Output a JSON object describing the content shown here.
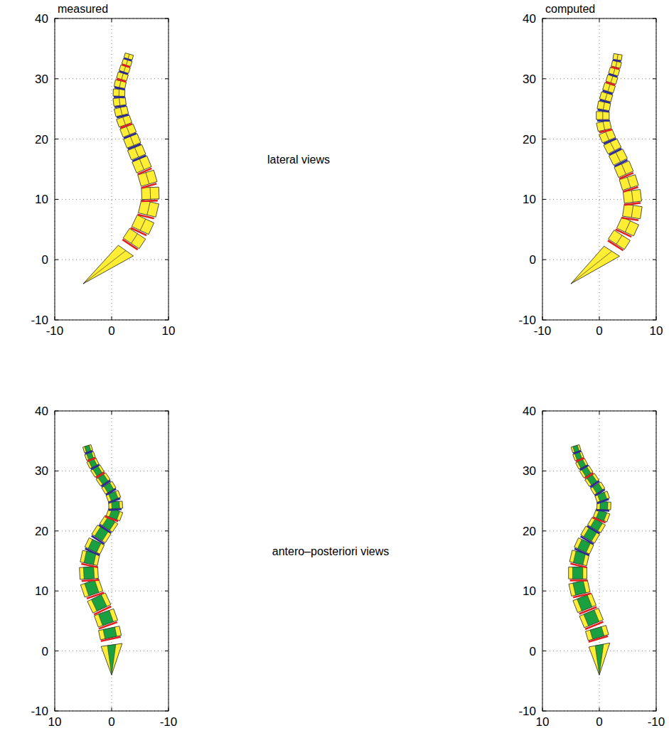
{
  "chart_data": [
    {
      "type": "lateral",
      "title": "measured",
      "annotation": "lateral views",
      "xlim": [
        -10,
        10
      ],
      "ylim": [
        -10,
        40
      ],
      "xticks": [
        -10,
        0,
        10
      ],
      "yticks": [
        -10,
        0,
        10,
        20,
        30,
        40
      ],
      "grid": true,
      "series": [
        {
          "x": [
            -5,
            2.5,
            4,
            5.5,
            6.5,
            6.8,
            6.3,
            5.3,
            4.4,
            3.6,
            2.9,
            2.2,
            1.7,
            1.4,
            1.3,
            1.5,
            1.9,
            2.3,
            2.7,
            3
          ],
          "y": [
            -4,
            1.5,
            3.5,
            5.8,
            8.5,
            11,
            13.5,
            15.8,
            17.8,
            19.7,
            21.4,
            23,
            24.6,
            26.2,
            27.7,
            29.1,
            30.4,
            31.6,
            32.7,
            33.7
          ]
        }
      ]
    },
    {
      "type": "lateral",
      "title": "computed",
      "xlim": [
        -10,
        10
      ],
      "ylim": [
        -10,
        40
      ],
      "xticks": [
        -10,
        0,
        10
      ],
      "yticks": [
        -10,
        0,
        10,
        20,
        30,
        40
      ],
      "grid": true,
      "series": [
        {
          "x": [
            -5,
            2.2,
            3.5,
            5,
            5.8,
            5.8,
            5.2,
            4.3,
            3.3,
            2.3,
            1.4,
            0.8,
            0.6,
            0.8,
            1.2,
            1.7,
            2.2,
            2.6,
            3,
            3.2
          ],
          "y": [
            -4,
            1.4,
            3.3,
            5.5,
            8,
            10.5,
            12.8,
            15,
            17,
            18.8,
            20.5,
            22.2,
            23.9,
            25.5,
            27,
            28.5,
            29.9,
            31.2,
            32.4,
            33.6
          ]
        }
      ]
    },
    {
      "type": "frontal",
      "annotation": "antero–posteriori views",
      "xlim": [
        10,
        -10
      ],
      "ylim": [
        -10,
        40
      ],
      "xticks": [
        10,
        0,
        -10
      ],
      "yticks": [
        -10,
        0,
        10,
        20,
        30,
        40
      ],
      "grid": true,
      "series": [
        {
          "x": [
            0,
            0,
            0.3,
            1,
            2.2,
            3.5,
            4,
            3.8,
            3,
            1.8,
            0.5,
            -0.5,
            -0.7,
            -0.3,
            0.5,
            1.5,
            2.5,
            3.3,
            3.8,
            4.2
          ],
          "y": [
            -4,
            1,
            3,
            5.5,
            8,
            10.5,
            13,
            15.5,
            17.5,
            19.5,
            21.2,
            22.8,
            24.3,
            25.8,
            27.2,
            28.6,
            30,
            31.3,
            32.5,
            33.7
          ]
        }
      ]
    },
    {
      "type": "frontal",
      "xlim": [
        10,
        -10
      ],
      "ylim": [
        -10,
        40
      ],
      "xticks": [
        10,
        0,
        -10
      ],
      "yticks": [
        -10,
        0,
        10,
        20,
        30,
        40
      ],
      "grid": true,
      "series": [
        {
          "x": [
            0,
            0,
            0.4,
            1.4,
            2.6,
            3.5,
            3.8,
            3.5,
            2.7,
            1.6,
            0.5,
            -0.4,
            -0.8,
            -0.5,
            0.3,
            1.3,
            2.3,
            3.1,
            3.7,
            4.1
          ],
          "y": [
            -4,
            1,
            3,
            5.5,
            8,
            10.5,
            13,
            15.5,
            17.5,
            19.4,
            21,
            22.6,
            24.2,
            25.7,
            27.1,
            28.5,
            29.9,
            31.2,
            32.5,
            33.7
          ]
        }
      ]
    }
  ]
}
